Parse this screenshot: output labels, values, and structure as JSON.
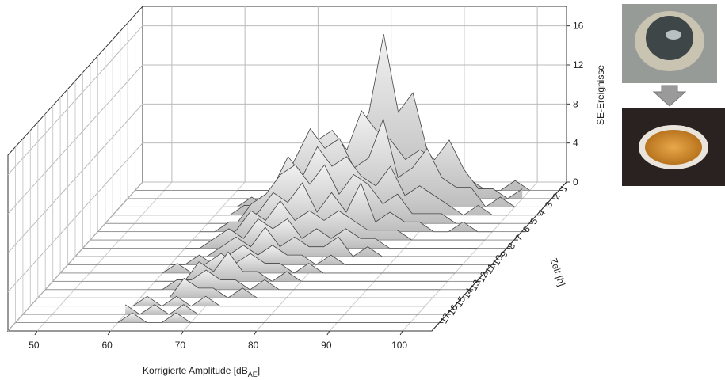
{
  "chart_data": {
    "type": "waterfall",
    "x_label": {
      "text": "Korrigierte Amplitude [dB",
      "sub": "AE",
      "end": "]"
    },
    "y_label": "SE-Ereignisse",
    "z_label": "Zeit [h]",
    "xlim": [
      46,
      104
    ],
    "xticks": [
      50,
      60,
      70,
      80,
      90,
      100
    ],
    "ylim": [
      0,
      18
    ],
    "yticks": [
      0,
      4,
      8,
      12,
      16
    ],
    "zlim": [
      0,
      18
    ],
    "z": [
      1,
      2,
      3,
      4,
      5,
      6,
      7,
      8,
      9,
      10,
      11,
      12,
      13,
      14,
      15,
      16,
      17
    ],
    "x": [
      60,
      62,
      64,
      66,
      68,
      70,
      72,
      74,
      76,
      78,
      80,
      82,
      84,
      86,
      88,
      90,
      92,
      94,
      96,
      98,
      100
    ],
    "color": "#d4d4d4",
    "grid": true,
    "series": [
      {
        "values": [
          0,
          0,
          0,
          0,
          0,
          0,
          1,
          3,
          5,
          8,
          16,
          8,
          10,
          4,
          2,
          3,
          1,
          0,
          0,
          1,
          0
        ]
      },
      {
        "values": [
          0,
          0,
          0,
          1,
          1,
          3,
          6,
          7,
          5,
          9,
          7,
          6,
          4,
          5,
          4,
          6,
          3,
          1,
          1,
          0,
          1
        ]
      },
      {
        "values": [
          0,
          0,
          1,
          0,
          2,
          5,
          8,
          6,
          7,
          4,
          5,
          9,
          3,
          4,
          6,
          3,
          2,
          2,
          0,
          1,
          0
        ]
      },
      {
        "values": [
          0,
          0,
          1,
          1,
          3,
          6,
          4,
          7,
          5,
          6,
          4,
          3,
          5,
          2,
          3,
          2,
          1,
          0,
          1,
          0,
          0
        ]
      },
      {
        "values": [
          0,
          0,
          0,
          2,
          3,
          5,
          6,
          4,
          6,
          3,
          5,
          4,
          2,
          3,
          1,
          1,
          1,
          0,
          0,
          0,
          0
        ]
      },
      {
        "values": [
          0,
          0,
          1,
          1,
          2,
          4,
          3,
          5,
          2,
          4,
          2,
          5,
          1,
          2,
          1,
          1,
          0,
          0,
          1,
          0,
          0
        ]
      },
      {
        "values": [
          0,
          0,
          0,
          1,
          3,
          2,
          4,
          2,
          3,
          2,
          3,
          2,
          1,
          1,
          1,
          0,
          0,
          0,
          0,
          0,
          0
        ]
      },
      {
        "values": [
          0,
          0,
          1,
          2,
          1,
          3,
          2,
          3,
          1,
          2,
          1,
          2,
          1,
          1,
          0,
          0,
          0,
          0,
          0,
          0,
          0
        ]
      },
      {
        "values": [
          0,
          0,
          0,
          1,
          2,
          1,
          3,
          1,
          2,
          1,
          1,
          2,
          0,
          1,
          0,
          0,
          0,
          0,
          0,
          0,
          0
        ]
      },
      {
        "values": [
          0,
          0,
          1,
          0,
          1,
          2,
          1,
          2,
          1,
          1,
          0,
          1,
          0,
          0,
          0,
          0,
          0,
          0,
          0,
          0,
          0
        ]
      },
      {
        "values": [
          0,
          1,
          0,
          1,
          2,
          1,
          2,
          1,
          1,
          0,
          1,
          0,
          0,
          0,
          0,
          0,
          0,
          0,
          0,
          0,
          0
        ]
      },
      {
        "values": [
          0,
          0,
          0,
          2,
          1,
          3,
          1,
          1,
          0,
          1,
          0,
          0,
          0,
          0,
          0,
          0,
          0,
          0,
          0,
          0,
          0
        ]
      },
      {
        "values": [
          0,
          0,
          1,
          1,
          2,
          1,
          1,
          0,
          1,
          0,
          0,
          0,
          0,
          0,
          0,
          0,
          0,
          0,
          0,
          0,
          0
        ]
      },
      {
        "values": [
          0,
          0,
          0,
          2,
          1,
          1,
          0,
          1,
          0,
          0,
          0,
          0,
          0,
          0,
          0,
          0,
          0,
          0,
          0,
          0,
          0
        ]
      },
      {
        "values": [
          0,
          1,
          0,
          1,
          0,
          1,
          0,
          0,
          0,
          0,
          0,
          0,
          0,
          0,
          0,
          0,
          0,
          0,
          0,
          0,
          0
        ]
      },
      {
        "values": [
          1,
          0,
          1,
          0,
          1,
          0,
          0,
          0,
          0,
          0,
          0,
          0,
          0,
          0,
          0,
          0,
          0,
          0,
          0,
          0,
          0
        ]
      },
      {
        "values": [
          0,
          1,
          0,
          0,
          1,
          0,
          0,
          0,
          0,
          0,
          0,
          0,
          0,
          0,
          0,
          0,
          0,
          0,
          0,
          0,
          0
        ]
      }
    ]
  }
}
